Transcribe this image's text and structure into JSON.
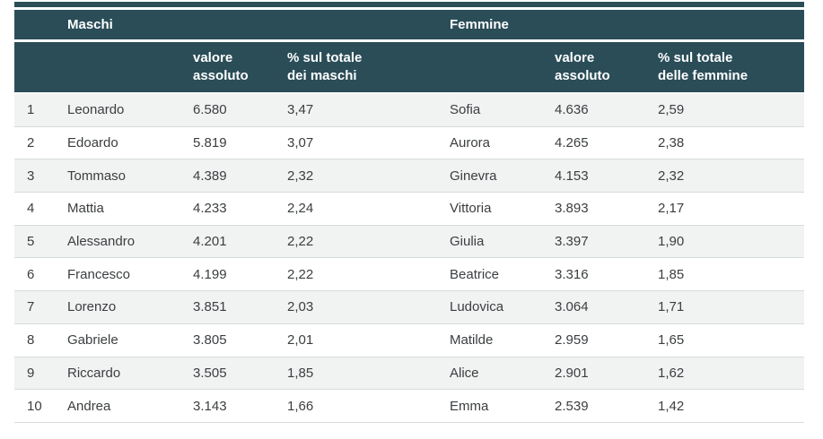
{
  "page": {
    "background": "#ffffff"
  },
  "table": {
    "colors": {
      "header_bg": "#2a4d58",
      "header_text": "#ffffff",
      "stripe_bg": "#f1f2f2",
      "row_border": "#d7dbdc",
      "body_text": "#3b3e40"
    },
    "group_headers": {
      "males": "Maschi",
      "females": "Femmine"
    },
    "column_headers": {
      "male_value": "valore\nassoluto",
      "male_pct": "% sul totale\ndei maschi",
      "female_value": "valore\nassoluto",
      "female_pct": "% sul totale\ndelle femmine"
    },
    "rows": [
      {
        "rank": "1",
        "male_name": "Leonardo",
        "male_value": "6.580",
        "male_pct": "3,47",
        "female_name": "Sofia",
        "female_value": "4.636",
        "female_pct": "2,59"
      },
      {
        "rank": "2",
        "male_name": "Edoardo",
        "male_value": "5.819",
        "male_pct": "3,07",
        "female_name": "Aurora",
        "female_value": "4.265",
        "female_pct": "2,38"
      },
      {
        "rank": "3",
        "male_name": "Tommaso",
        "male_value": "4.389",
        "male_pct": "2,32",
        "female_name": "Ginevra",
        "female_value": "4.153",
        "female_pct": "2,32"
      },
      {
        "rank": "4",
        "male_name": "Mattia",
        "male_value": "4.233",
        "male_pct": "2,24",
        "female_name": "Vittoria",
        "female_value": "3.893",
        "female_pct": "2,17"
      },
      {
        "rank": "5",
        "male_name": "Alessandro",
        "male_value": "4.201",
        "male_pct": "2,22",
        "female_name": "Giulia",
        "female_value": "3.397",
        "female_pct": "1,90"
      },
      {
        "rank": "6",
        "male_name": "Francesco",
        "male_value": "4.199",
        "male_pct": "2,22",
        "female_name": "Beatrice",
        "female_value": "3.316",
        "female_pct": "1,85"
      },
      {
        "rank": "7",
        "male_name": "Lorenzo",
        "male_value": "3.851",
        "male_pct": "2,03",
        "female_name": "Ludovica",
        "female_value": "3.064",
        "female_pct": "1,71"
      },
      {
        "rank": "8",
        "male_name": "Gabriele",
        "male_value": "3.805",
        "male_pct": "2,01",
        "female_name": "Matilde",
        "female_value": "2.959",
        "female_pct": "1,65"
      },
      {
        "rank": "9",
        "male_name": "Riccardo",
        "male_value": "3.505",
        "male_pct": "1,85",
        "female_name": "Alice",
        "female_value": "2.901",
        "female_pct": "1,62"
      },
      {
        "rank": "10",
        "male_name": "Andrea",
        "male_value": "3.143",
        "male_pct": "1,66",
        "female_name": "Emma",
        "female_value": "2.539",
        "female_pct": "1,42"
      }
    ]
  }
}
